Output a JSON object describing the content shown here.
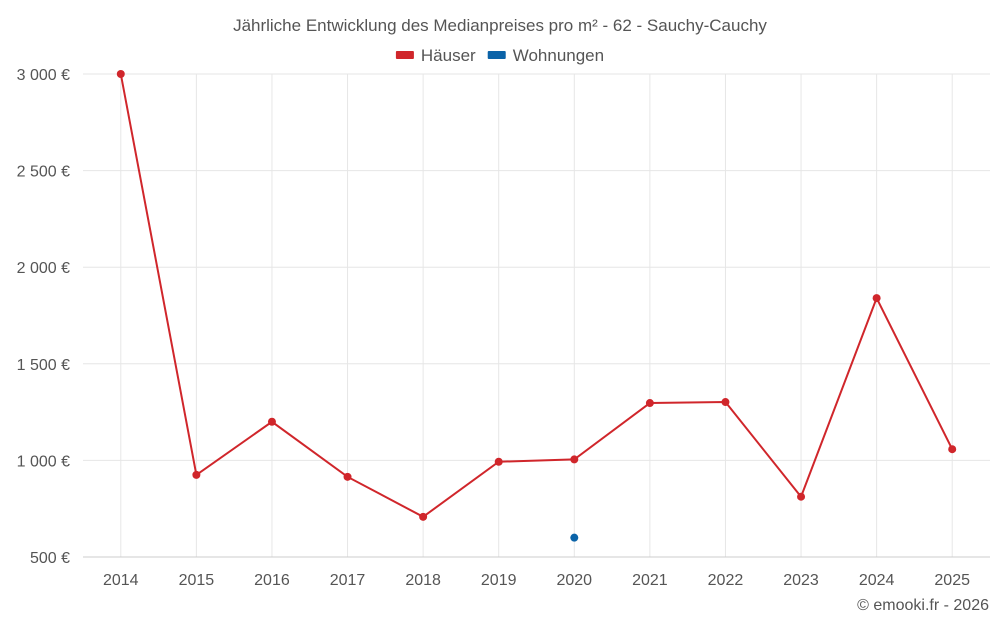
{
  "chart_data": {
    "type": "line",
    "title": "Jährliche Entwicklung des Medianpreises pro m² - 62 - Sauchy-Cauchy",
    "categories": [
      "2014",
      "2015",
      "2016",
      "2017",
      "2018",
      "2019",
      "2020",
      "2021",
      "2022",
      "2023",
      "2024",
      "2025"
    ],
    "series": [
      {
        "name": "Häuser",
        "color": "#d0262b",
        "values": [
          3000,
          925,
          1200,
          915,
          708,
          993,
          1005,
          1297,
          1302,
          812,
          1840,
          1058
        ]
      },
      {
        "name": "Wohnungen",
        "color": "#0b63a8",
        "values": [
          null,
          null,
          null,
          null,
          null,
          null,
          600,
          null,
          null,
          null,
          null,
          null
        ]
      }
    ],
    "yticks": [
      500,
      1000,
      1500,
      2000,
      2500,
      3000
    ],
    "ytick_labels": [
      "500 €",
      "1 000 €",
      "1 500 €",
      "2 000 €",
      "2 500 €",
      "3 000 €"
    ],
    "ylim": [
      500,
      3000
    ],
    "xlabel": "",
    "ylabel": "",
    "grid": true,
    "legend_position": "top-center"
  },
  "credit": "© emooki.fr - 2026"
}
